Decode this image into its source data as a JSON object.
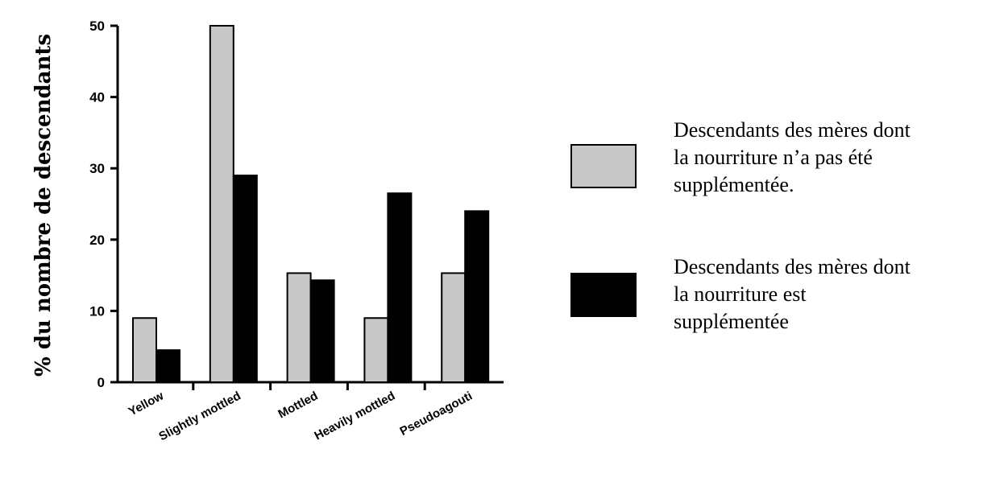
{
  "chart_data": {
    "type": "bar",
    "title": "",
    "xlabel": "",
    "ylabel": "% du nombre de descendants",
    "ylim": [
      0,
      50
    ],
    "yticks": [
      0,
      10,
      20,
      30,
      40,
      50
    ],
    "grid": false,
    "legend_position": "right",
    "categories": [
      "Yellow",
      "Slightly mottled",
      "Mottled",
      "Heavily mottled",
      "Pseudoagouti"
    ],
    "series": [
      {
        "name": "Descendants des mères dont la nourriture n’a pas été supplémentée.",
        "color": "#c8c8c8",
        "values": [
          9,
          50,
          15.3,
          9,
          15.3
        ]
      },
      {
        "name": "Descendants des mères dont la nourriture est supplémentée",
        "color": "#000000",
        "values": [
          4.5,
          29,
          14.3,
          26.5,
          24
        ]
      }
    ],
    "legend": [
      {
        "lines": [
          "Descendants des mères dont",
          "la nourriture n’a pas été",
          "supplémentée."
        ],
        "color": "#c8c8c8"
      },
      {
        "lines": [
          "Descendants des mères dont",
          "la nourriture est",
          "supplémentée"
        ],
        "color": "#000000"
      }
    ]
  }
}
